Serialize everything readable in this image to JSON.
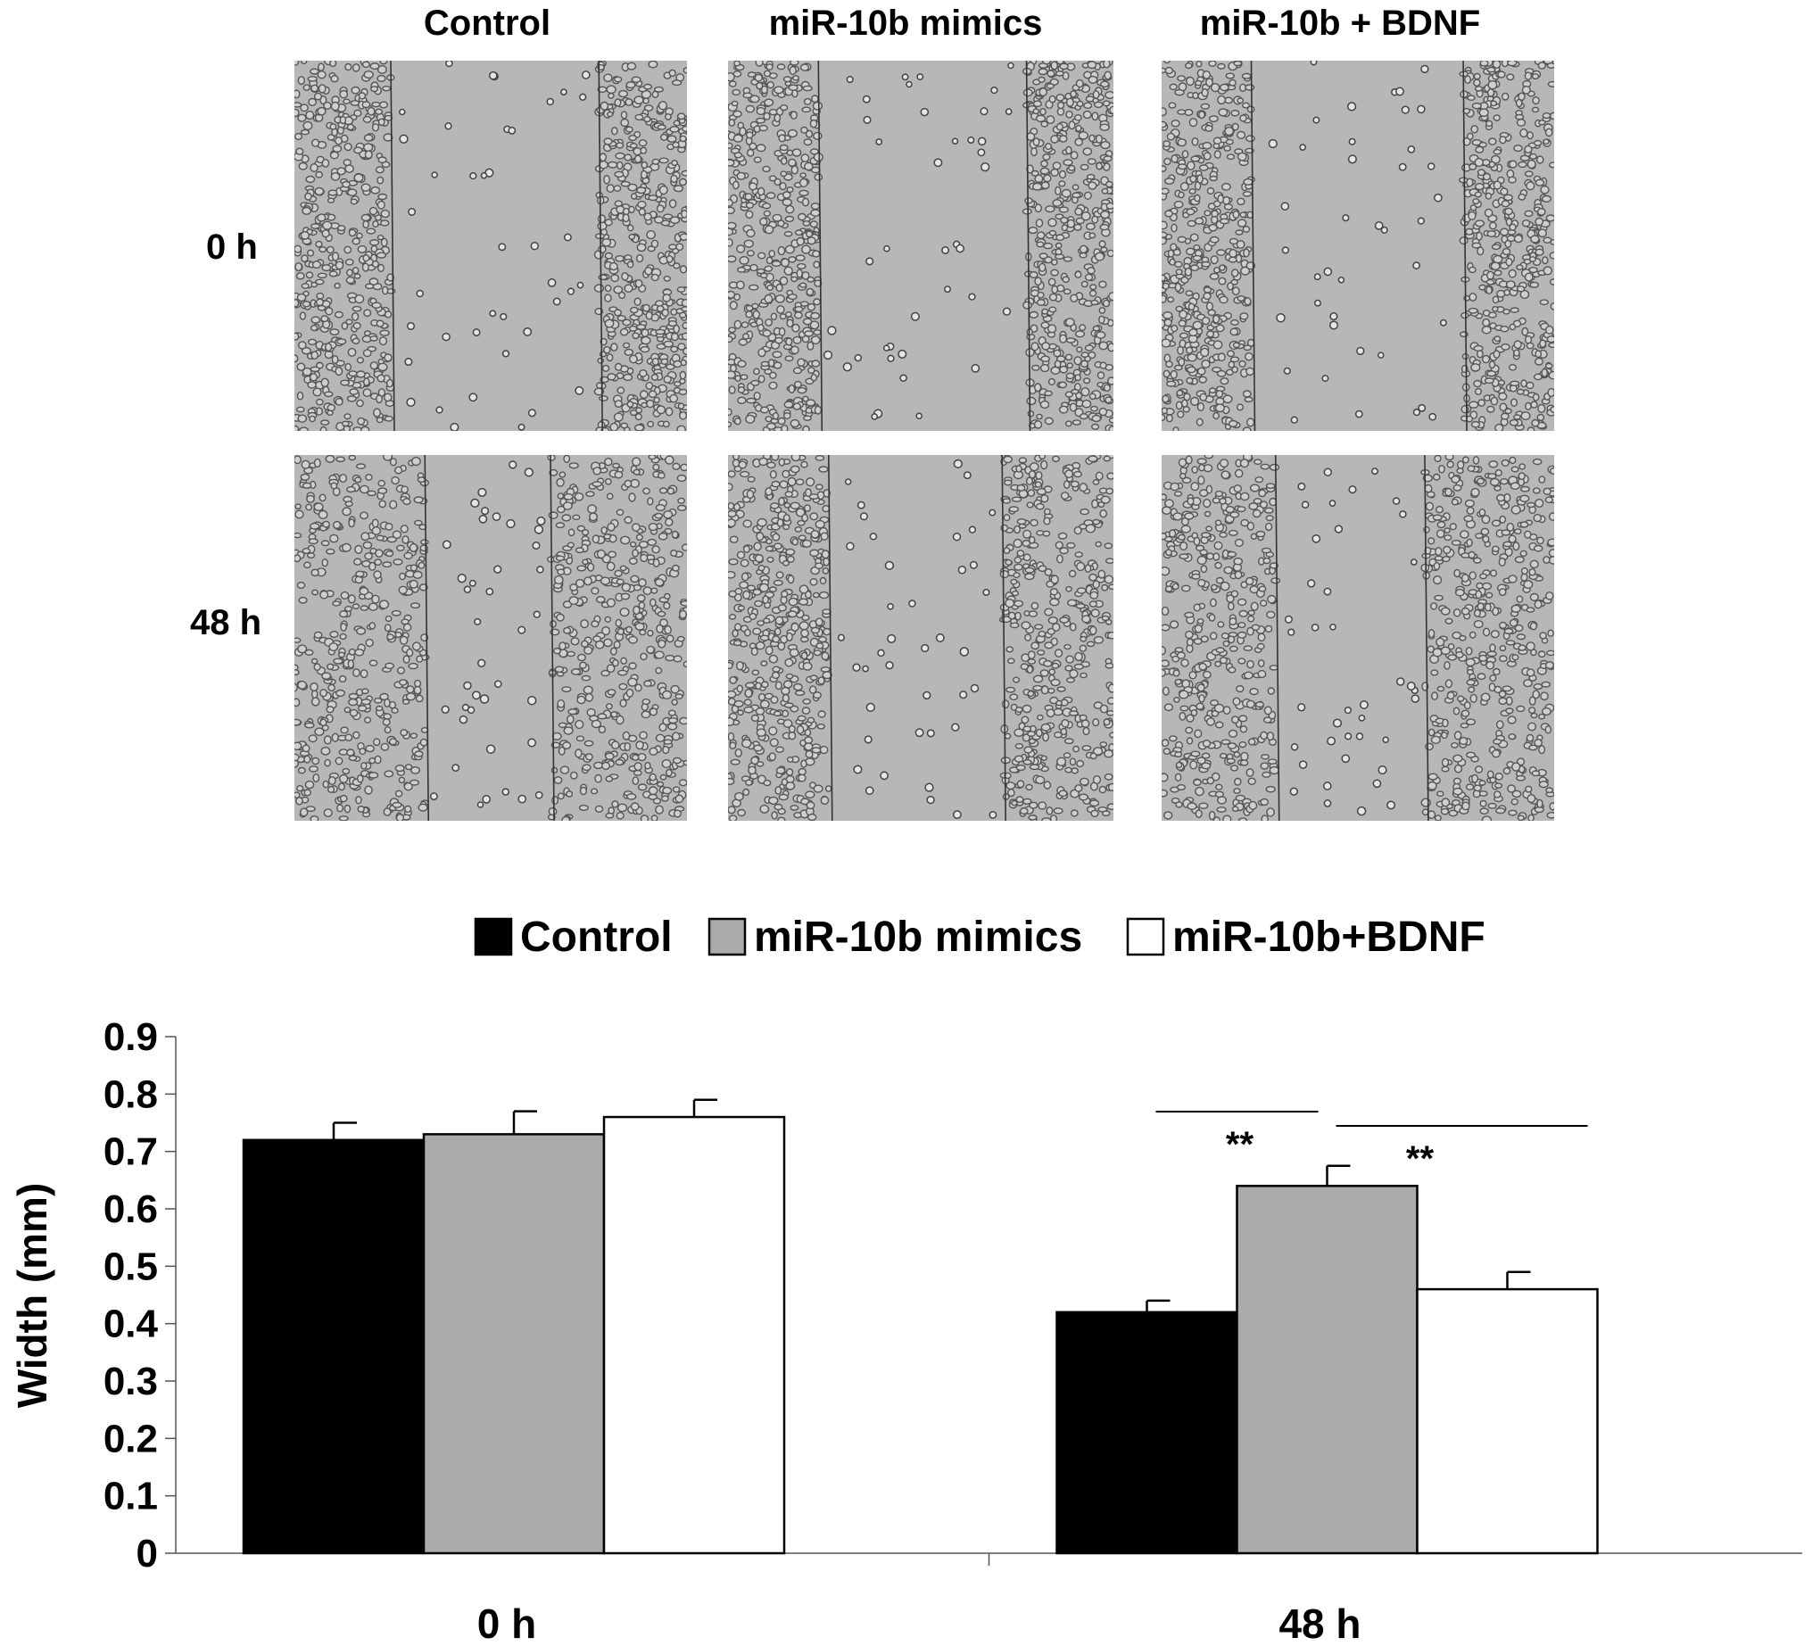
{
  "micrographs": {
    "columns": [
      "Control",
      "miR-10b mimics",
      "miR-10b + BDNF"
    ],
    "rows": [
      "0 h",
      "48 h"
    ],
    "panels": [
      {
        "column": "Control",
        "row": "0 h",
        "gap_fraction": 0.53
      },
      {
        "column": "miR-10b mimics",
        "row": "0 h",
        "gap_fraction": 0.54
      },
      {
        "column": "miR-10b + BDNF",
        "row": "0 h",
        "gap_fraction": 0.54
      },
      {
        "column": "Control",
        "row": "48 h",
        "gap_fraction": 0.32
      },
      {
        "column": "miR-10b mimics",
        "row": "48 h",
        "gap_fraction": 0.45
      },
      {
        "column": "miR-10b + BDNF",
        "row": "48 h",
        "gap_fraction": 0.38
      }
    ]
  },
  "chart_data": {
    "type": "bar",
    "categories": [
      "0 h",
      "48 h"
    ],
    "series": [
      {
        "name": "Control",
        "color": "#000000",
        "values": [
          0.72,
          0.42
        ],
        "errors": [
          0.03,
          0.02
        ]
      },
      {
        "name": "miR-10b mimics",
        "color": "#aaaaaa",
        "values": [
          0.73,
          0.64
        ],
        "errors": [
          0.04,
          0.035
        ]
      },
      {
        "name": "miR-10b+BDNF",
        "color": "#ffffff",
        "values": [
          0.76,
          0.46
        ],
        "errors": [
          0.03,
          0.03
        ]
      }
    ],
    "ylabel": "Width (mm)",
    "xlabel": "",
    "ylim": [
      0,
      0.9
    ],
    "yticks": [
      "0",
      "0.1",
      "0.2",
      "0.3",
      "0.4",
      "0.5",
      "0.6",
      "0.7",
      "0.8",
      "0.9"
    ],
    "legend_position": "top",
    "grid": false,
    "annotations": [
      {
        "text": "**",
        "between": [
          "Control",
          "miR-10b mimics"
        ],
        "category": "48 h"
      },
      {
        "text": "**",
        "between": [
          "miR-10b mimics",
          "miR-10b+BDNF"
        ],
        "category": "48 h"
      }
    ]
  }
}
